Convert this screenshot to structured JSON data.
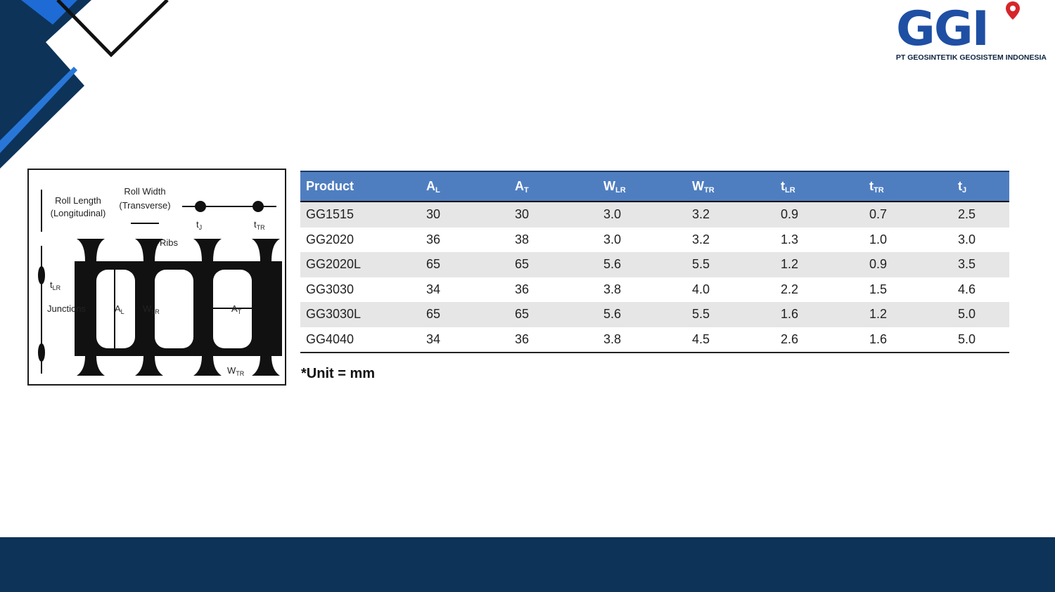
{
  "header": {
    "logo": "GGI",
    "company": "PT GEOSINTETIK GEOSISTEM INDONESIA"
  },
  "diagram": {
    "roll_length": [
      "Roll Length",
      "(Longitudinal)"
    ],
    "roll_width": [
      "Roll Width",
      "(Transverse)"
    ],
    "ribs": "Ribs",
    "junctions": "Junctions",
    "symbols": [
      {
        "main": "t",
        "sub": "J"
      },
      {
        "main": "t",
        "sub": "TR"
      },
      {
        "main": "t",
        "sub": "LR"
      },
      {
        "main": "A",
        "sub": "L"
      },
      {
        "main": "W",
        "sub": "LR"
      },
      {
        "main": "A",
        "sub": "T"
      },
      {
        "main": "W",
        "sub": "TR"
      }
    ]
  },
  "table": {
    "columns": [
      {
        "main": "Product"
      },
      {
        "main": "A",
        "sub": "L"
      },
      {
        "main": "A",
        "sub": "T"
      },
      {
        "main": "W",
        "sub": "LR"
      },
      {
        "main": "W",
        "sub": "TR"
      },
      {
        "main": "t",
        "sub": "LR"
      },
      {
        "main": "t",
        "sub": "TR"
      },
      {
        "main": "t",
        "sub": "J"
      }
    ],
    "rows": [
      [
        "GG1515",
        "30",
        "30",
        "3.0",
        "3.2",
        "0.9",
        "0.7",
        "2.5"
      ],
      [
        "GG2020",
        "36",
        "38",
        "3.0",
        "3.2",
        "1.3",
        "1.0",
        "3.0"
      ],
      [
        "GG2020L",
        "65",
        "65",
        "5.6",
        "5.5",
        "1.2",
        "0.9",
        "3.5"
      ],
      [
        "GG3030",
        "34",
        "36",
        "3.8",
        "4.0",
        "2.2",
        "1.5",
        "4.6"
      ],
      [
        "GG3030L",
        "65",
        "65",
        "5.6",
        "5.5",
        "1.6",
        "1.2",
        "5.0"
      ],
      [
        "GG4040",
        "34",
        "36",
        "3.8",
        "4.5",
        "2.6",
        "1.6",
        "5.0"
      ]
    ],
    "note": "*Unit = mm"
  }
}
